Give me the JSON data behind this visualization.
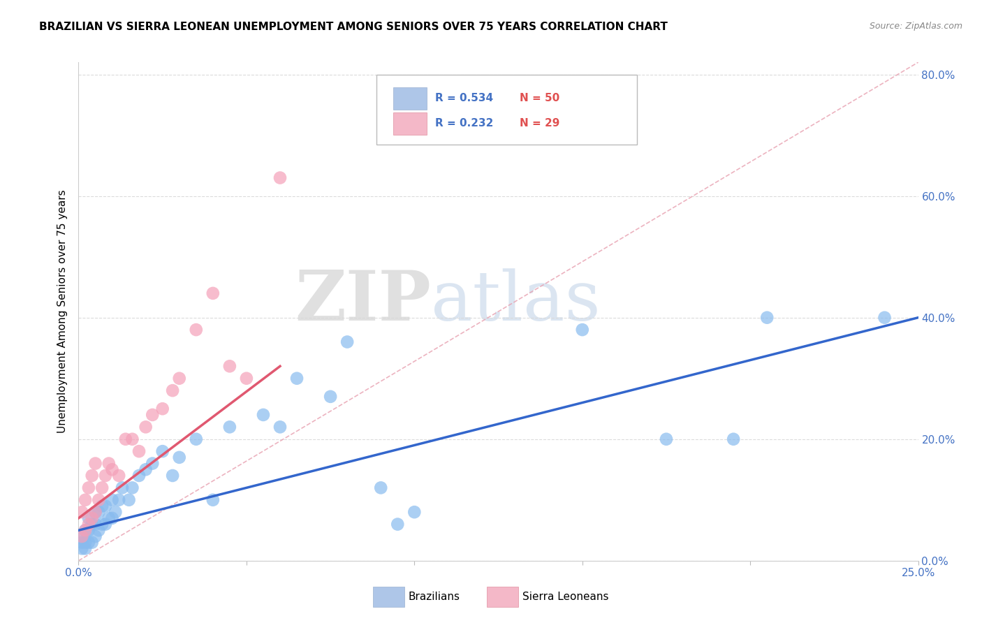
{
  "title": "BRAZILIAN VS SIERRA LEONEAN UNEMPLOYMENT AMONG SENIORS OVER 75 YEARS CORRELATION CHART",
  "source": "Source: ZipAtlas.com",
  "ylabel": "Unemployment Among Seniors over 75 years",
  "watermark_zip": "ZIP",
  "watermark_atlas": "atlas",
  "brazilian_color": "#88bbee",
  "sierraleonean_color": "#f4a0b8",
  "trend_brazilian_color": "#3366cc",
  "trend_sierraleonean_color": "#e05870",
  "diagonal_color": "#e8a0b0",
  "diagonal_linestyle": "--",
  "x_min": 0.0,
  "x_max": 0.25,
  "y_min": 0.0,
  "y_max": 0.82,
  "y_ticks": [
    0.0,
    0.2,
    0.4,
    0.6,
    0.8
  ],
  "y_tick_labels": [
    "0.0%",
    "20.0%",
    "40.0%",
    "60.0%",
    "80.0%"
  ],
  "brazilian_x": [
    0.001,
    0.001,
    0.001,
    0.002,
    0.002,
    0.002,
    0.003,
    0.003,
    0.003,
    0.004,
    0.004,
    0.005,
    0.005,
    0.005,
    0.006,
    0.006,
    0.007,
    0.007,
    0.008,
    0.008,
    0.009,
    0.01,
    0.01,
    0.011,
    0.012,
    0.013,
    0.015,
    0.016,
    0.018,
    0.02,
    0.022,
    0.025,
    0.028,
    0.03,
    0.035,
    0.04,
    0.045,
    0.055,
    0.06,
    0.065,
    0.075,
    0.08,
    0.09,
    0.095,
    0.1,
    0.15,
    0.175,
    0.195,
    0.205,
    0.24
  ],
  "brazilian_y": [
    0.02,
    0.03,
    0.04,
    0.02,
    0.03,
    0.05,
    0.03,
    0.05,
    0.07,
    0.03,
    0.06,
    0.04,
    0.06,
    0.08,
    0.05,
    0.08,
    0.06,
    0.09,
    0.06,
    0.09,
    0.07,
    0.07,
    0.1,
    0.08,
    0.1,
    0.12,
    0.1,
    0.12,
    0.14,
    0.15,
    0.16,
    0.18,
    0.14,
    0.17,
    0.2,
    0.1,
    0.22,
    0.24,
    0.22,
    0.3,
    0.27,
    0.36,
    0.12,
    0.06,
    0.08,
    0.38,
    0.2,
    0.2,
    0.4,
    0.4
  ],
  "sierraleonean_x": [
    0.001,
    0.001,
    0.002,
    0.002,
    0.003,
    0.003,
    0.004,
    0.004,
    0.005,
    0.005,
    0.006,
    0.007,
    0.008,
    0.009,
    0.01,
    0.012,
    0.014,
    0.016,
    0.018,
    0.02,
    0.022,
    0.025,
    0.028,
    0.03,
    0.035,
    0.04,
    0.045,
    0.05,
    0.06
  ],
  "sierraleonean_y": [
    0.04,
    0.08,
    0.05,
    0.1,
    0.06,
    0.12,
    0.07,
    0.14,
    0.08,
    0.16,
    0.1,
    0.12,
    0.14,
    0.16,
    0.15,
    0.14,
    0.2,
    0.2,
    0.18,
    0.22,
    0.24,
    0.25,
    0.28,
    0.3,
    0.38,
    0.44,
    0.32,
    0.3,
    0.63
  ],
  "trend_b_x0": 0.0,
  "trend_b_x1": 0.25,
  "trend_b_y0": 0.05,
  "trend_b_y1": 0.4,
  "trend_s_x0": 0.0,
  "trend_s_x1": 0.06,
  "trend_s_y0": 0.07,
  "trend_s_y1": 0.32
}
